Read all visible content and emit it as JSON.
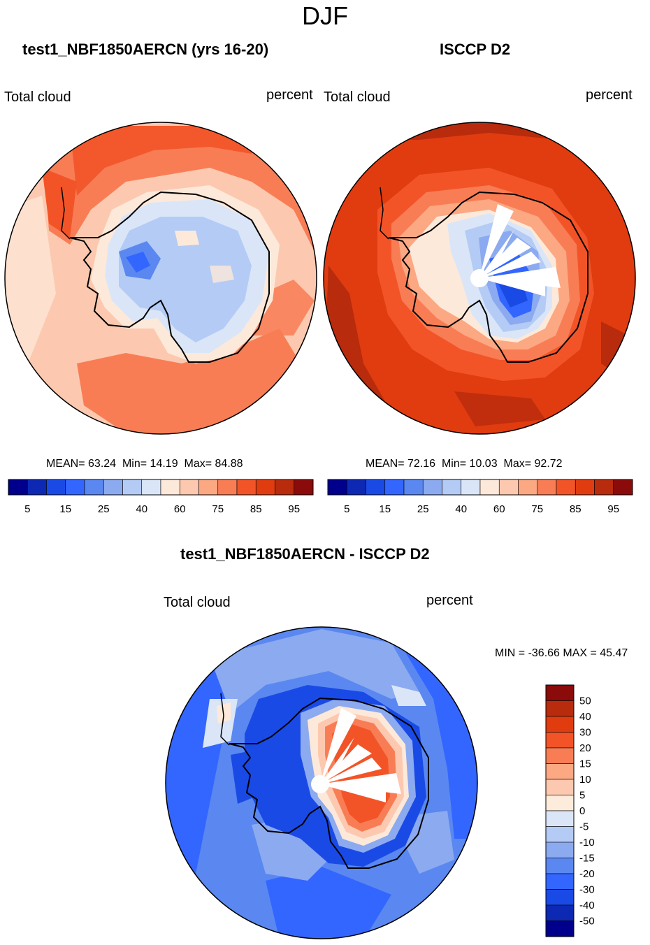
{
  "figure": {
    "title": "DJF"
  },
  "palette": {
    "abs": [
      "#00008c",
      "#0d28b3",
      "#1a4ae6",
      "#3366ff",
      "#5a88f0",
      "#8caaf0",
      "#b4cbf5",
      "#dae6f8",
      "#fde9da",
      "#fcc9b0",
      "#fba883",
      "#f87d55",
      "#f25428",
      "#e03c10",
      "#b82b0c",
      "#8b0a0a"
    ],
    "diff": [
      "#00008c",
      "#0d28b3",
      "#1a4ae6",
      "#3366ff",
      "#5a88f0",
      "#8caaf0",
      "#b4cbf5",
      "#dae6f8",
      "#fdebdc",
      "#fcc9b0",
      "#fba883",
      "#f87d55",
      "#f25428",
      "#e03c10",
      "#b82b0c",
      "#8b0a0a"
    ]
  },
  "chart_data": [
    {
      "type": "heatmap",
      "projection": "south-polar-stereographic",
      "title": "test1_NBF1850AERCN (yrs 16-20)",
      "left_label": "Total cloud",
      "right_label": "percent",
      "stats": {
        "mean_label": "MEAN=",
        "mean": "63.24",
        "min_label": "Min=",
        "min": "14.19",
        "max_label": "Max=",
        "max": "84.88"
      },
      "colorbar": {
        "levels": [
          5,
          10,
          15,
          20,
          25,
          30,
          40,
          50,
          60,
          65,
          75,
          80,
          85,
          90,
          95
        ],
        "tick_labels": [
          "5",
          "15",
          "25",
          "40",
          "60",
          "75",
          "85",
          "95"
        ]
      }
    },
    {
      "type": "heatmap",
      "projection": "south-polar-stereographic",
      "title": "ISCCP D2",
      "left_label": "Total cloud",
      "right_label": "percent",
      "stats": {
        "mean_label": "MEAN=",
        "mean": "72.16",
        "min_label": "Min=",
        "min": "10.03",
        "max_label": "Max=",
        "max": "92.72"
      },
      "colorbar": {
        "levels": [
          5,
          10,
          15,
          20,
          25,
          30,
          40,
          50,
          60,
          65,
          75,
          80,
          85,
          90,
          95
        ],
        "tick_labels": [
          "5",
          "15",
          "25",
          "40",
          "60",
          "75",
          "85",
          "95"
        ]
      }
    },
    {
      "type": "heatmap",
      "projection": "south-polar-stereographic",
      "title": "test1_NBF1850AERCN - ISCCP D2",
      "left_label": "Total cloud",
      "right_label": "percent",
      "stats": {
        "minmax_text": "MIN = -36.66 MAX =  45.47"
      },
      "colorbar": {
        "levels": [
          -50,
          -40,
          -30,
          -20,
          -15,
          -10,
          -5,
          0,
          5,
          10,
          15,
          20,
          30,
          40,
          50
        ],
        "tick_labels": [
          "50",
          "40",
          "30",
          "20",
          "15",
          "10",
          "5",
          "0",
          "-5",
          "-10",
          "-15",
          "-20",
          "-30",
          "-40",
          "-50"
        ]
      }
    }
  ]
}
